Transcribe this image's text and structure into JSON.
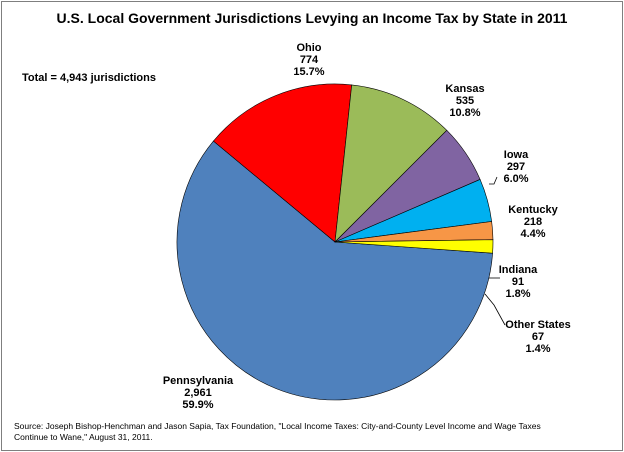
{
  "chart_data": {
    "type": "pie",
    "title": "U.S. Local Government Jurisdictions Levying an Income Tax by State in 2011",
    "annotation": "Total = 4,943 jurisdictions",
    "slices": [
      {
        "name": "Pennsylvania",
        "value": 2961,
        "value_label": "2,961",
        "percent": "59.9%",
        "color": "#4f81bd"
      },
      {
        "name": "Ohio",
        "value": 774,
        "value_label": "774",
        "percent": "15.7%",
        "color": "#ff0000"
      },
      {
        "name": "Kansas",
        "value": 535,
        "value_label": "535",
        "percent": "10.8%",
        "color": "#9bbb59"
      },
      {
        "name": "Iowa",
        "value": 297,
        "value_label": "297",
        "percent": "6.0%",
        "color": "#8064a2"
      },
      {
        "name": "Kentucky",
        "value": 218,
        "value_label": "218",
        "percent": "4.4%",
        "color": "#00b0f0"
      },
      {
        "name": "Indiana",
        "value": 91,
        "value_label": "91",
        "percent": "1.8%",
        "color": "#f79646"
      },
      {
        "name": "Other States",
        "value": 67,
        "value_label": "67",
        "percent": "1.4%",
        "color": "#ffff00"
      }
    ],
    "source": "Source: Joseph Bishop-Henchman and Jason Sapia, Tax Foundation, \"Local Income Taxes: City-and-County Level Income and Wage Taxes Continue to Wane,\" August 31, 2011."
  }
}
